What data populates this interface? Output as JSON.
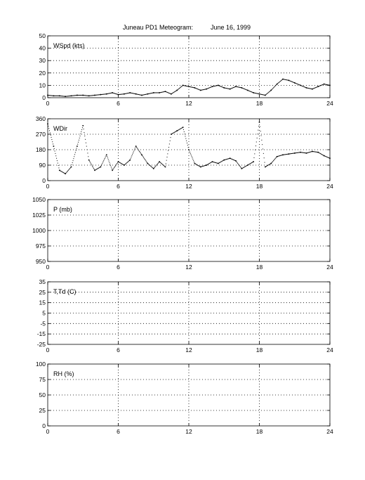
{
  "figure": {
    "title_left": "Juneau PD1 Meteogram:",
    "title_right": "June 16, 1999"
  },
  "chart_data": [
    {
      "type": "scatter",
      "label": "WSpd (kts)",
      "xlim": [
        0,
        24
      ],
      "ylim": [
        0,
        50
      ],
      "xticks": [
        0,
        6,
        12,
        18,
        24
      ],
      "yticks": [
        0,
        10,
        20,
        30,
        40,
        50
      ],
      "grid": true,
      "series": [
        {
          "x": [
            0,
            0.5,
            1,
            1.5,
            2,
            2.5,
            3,
            3.5,
            4,
            4.5,
            5,
            5.5,
            6,
            6.5,
            7,
            7.5,
            8,
            8.5,
            9,
            9.5,
            10,
            10.5,
            11,
            11.5,
            12,
            12.5,
            13,
            13.5,
            14,
            14.5,
            15,
            15.5,
            16,
            16.5,
            17,
            17.5,
            18,
            18.5,
            19,
            19.5,
            20,
            20.5,
            21,
            21.5,
            22,
            22.5,
            23,
            23.5,
            24
          ],
          "y": [
            2,
            1.5,
            1.5,
            1,
            1.5,
            2,
            2,
            1.5,
            2,
            2.5,
            3,
            4,
            2.5,
            3,
            4,
            3,
            2,
            3,
            4,
            4,
            5,
            3,
            6,
            10,
            9,
            8,
            6,
            7,
            9,
            10,
            8,
            7,
            9,
            8,
            6,
            4,
            3,
            2,
            6,
            11,
            15,
            14,
            12,
            10,
            8,
            7,
            9,
            11,
            10
          ]
        }
      ]
    },
    {
      "type": "scatter",
      "label": "WDir",
      "xlim": [
        0,
        24
      ],
      "ylim": [
        0,
        360
      ],
      "xticks": [
        0,
        6,
        12,
        18,
        24
      ],
      "yticks": [
        0,
        90,
        180,
        270,
        360
      ],
      "grid": true,
      "series": [
        {
          "x": [
            0,
            0.5,
            1,
            1.5,
            2,
            2.5,
            3,
            3.5,
            4,
            4.5,
            5,
            5.5,
            6,
            6.5,
            7,
            7.5,
            8,
            8.5,
            9,
            9.5,
            10,
            10.5,
            11,
            11.5,
            12,
            12.5,
            13,
            13.5,
            14,
            14.5,
            15,
            15.5,
            16,
            16.5,
            17,
            17.5,
            18,
            18.5,
            19,
            19.5,
            20,
            20.5,
            21,
            21.5,
            22,
            22.5,
            23,
            23.5,
            24
          ],
          "y": [
            330,
            200,
            60,
            40,
            80,
            200,
            320,
            120,
            60,
            80,
            150,
            60,
            110,
            90,
            120,
            200,
            150,
            100,
            70,
            110,
            80,
            270,
            290,
            310,
            180,
            100,
            80,
            90,
            110,
            100,
            120,
            130,
            115,
            70,
            90,
            110,
            340,
            80,
            100,
            140,
            150,
            155,
            160,
            165,
            160,
            170,
            165,
            145,
            130
          ]
        }
      ]
    },
    {
      "type": "line",
      "label": "P (mb)",
      "xlim": [
        0,
        24
      ],
      "ylim": [
        950,
        1050
      ],
      "xticks": [
        0,
        6,
        12,
        18,
        24
      ],
      "yticks": [
        950,
        975,
        1000,
        1025,
        1050
      ],
      "grid": true,
      "series": []
    },
    {
      "type": "line",
      "label": "T,Td (C)",
      "xlim": [
        0,
        24
      ],
      "ylim": [
        -25,
        35
      ],
      "xticks": [
        0,
        6,
        12,
        18,
        24
      ],
      "yticks": [
        -25,
        -15,
        -5,
        5,
        15,
        25,
        35
      ],
      "grid": true,
      "series": []
    },
    {
      "type": "line",
      "label": "RH (%)",
      "xlim": [
        0,
        24
      ],
      "ylim": [
        0,
        100
      ],
      "xticks": [
        0,
        6,
        12,
        18,
        24
      ],
      "yticks": [
        0,
        25,
        50,
        75,
        100
      ],
      "grid": true,
      "series": []
    }
  ]
}
